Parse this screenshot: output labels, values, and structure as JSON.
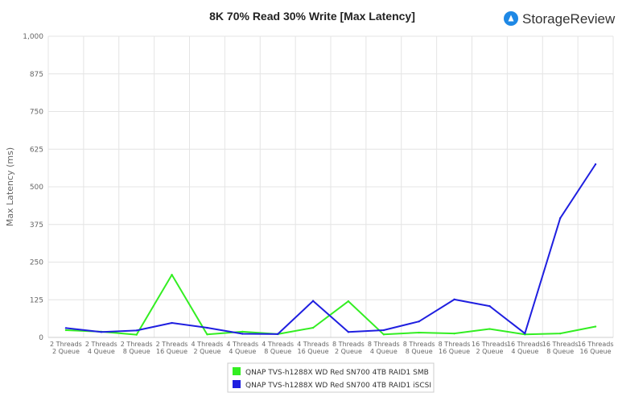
{
  "brand": {
    "name": "StorageReview",
    "icon": "storagereview-logo-icon",
    "icon_color": "#1e88e5"
  },
  "chart_data": {
    "type": "line",
    "title": "8K 70% Read 30% Write [Max Latency]",
    "xlabel": "",
    "ylabel": "Max Latency  (ms)",
    "ylim": [
      0,
      1000
    ],
    "yticks": [
      "0",
      "125",
      "250",
      "375",
      "500",
      "625",
      "750",
      "875",
      "1,000"
    ],
    "ytick_values": [
      0,
      125,
      250,
      375,
      500,
      625,
      750,
      875,
      1000
    ],
    "grid": true,
    "legend_position": "bottom",
    "categories": [
      [
        "2 Threads",
        "2 Queue"
      ],
      [
        "2 Threads",
        "4 Queue"
      ],
      [
        "2 Threads",
        "8 Queue"
      ],
      [
        "2 Threads",
        "16 Queue"
      ],
      [
        "4 Threads",
        "2 Queue"
      ],
      [
        "4 Threads",
        "4 Queue"
      ],
      [
        "4 Threads",
        "8 Queue"
      ],
      [
        "4 Threads",
        "16 Queue"
      ],
      [
        "8 Threads",
        "2 Queue"
      ],
      [
        "8 Threads",
        "4 Queue"
      ],
      [
        "8 Threads",
        "8 Queue"
      ],
      [
        "8 Threads",
        "16 Queue"
      ],
      [
        "16 Threads",
        "2 Queue"
      ],
      [
        "16 Threads",
        "4 Queue"
      ],
      [
        "16 Threads",
        "8 Queue"
      ],
      [
        "16 Threads",
        "16 Queue"
      ]
    ],
    "series": [
      {
        "name": "QNAP TVS-h1288X WD Red SN700 4TB RAID1 SMB",
        "color": "#33ee22",
        "values": [
          24,
          19,
          9,
          208,
          10,
          19,
          11,
          32,
          120,
          10,
          16,
          13,
          28,
          10,
          13,
          36
        ]
      },
      {
        "name": "QNAP TVS-h1288X WD Red SN700 4TB RAID1 iSCSI",
        "color": "#1f1fe0",
        "values": [
          31,
          18,
          23,
          48,
          32,
          12,
          11,
          121,
          18,
          24,
          53,
          126,
          104,
          13,
          396,
          575
        ]
      }
    ]
  }
}
